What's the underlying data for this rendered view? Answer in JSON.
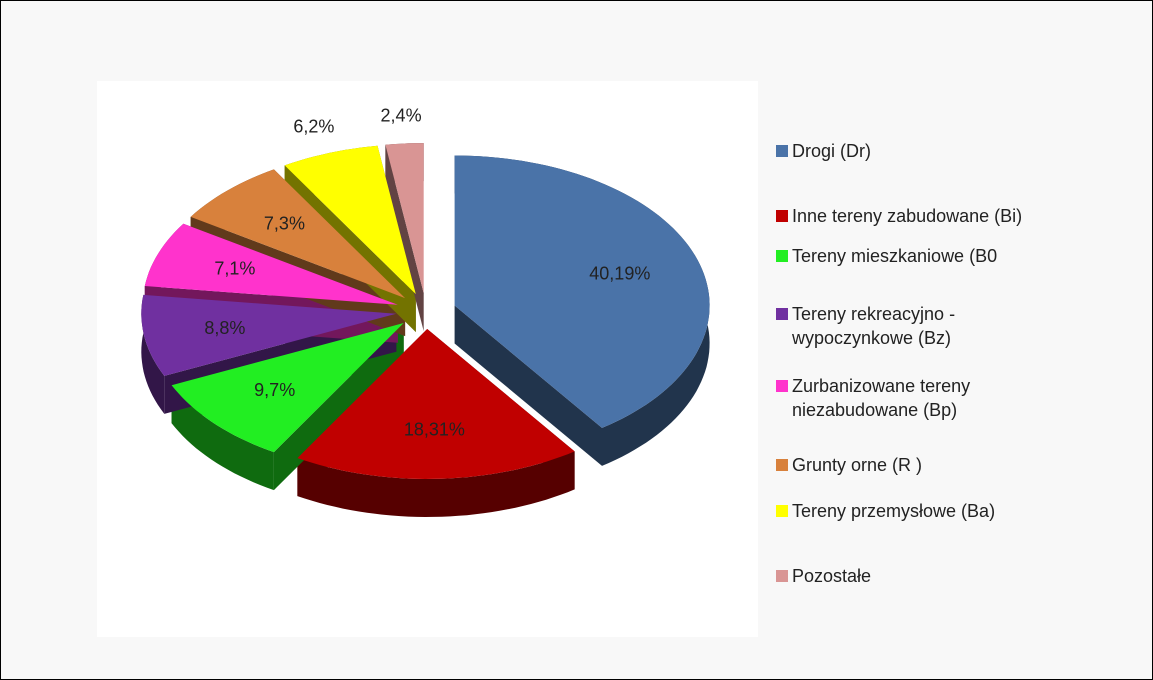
{
  "chart_data": {
    "type": "pie",
    "categories": [
      "Drogi (Dr)",
      "Inne tereny zabudowane (Bi)",
      "Tereny mieszkaniowe (B0",
      "Tereny rekreacyjno - wypoczynkowe (Bz)",
      "Zurbanizowane tereny niezabudowane (Bp)",
      "Grunty orne (R )",
      "Tereny przemysłowe (Ba)",
      "Pozostałe"
    ],
    "values": [
      40.19,
      18.31,
      9.7,
      8.8,
      7.1,
      7.3,
      6.2,
      2.4
    ],
    "value_labels": [
      "40,19%",
      "18,31%",
      "9,7%",
      "8,8%",
      "7,1%",
      "7,3%",
      "6,2%",
      "2,4%"
    ],
    "colors": [
      "#4a73a8",
      "#c00000",
      "#22ee22",
      "#7030a0",
      "#ff33cc",
      "#d8813c",
      "#ffff00",
      "#d99594"
    ],
    "legend": "right"
  }
}
